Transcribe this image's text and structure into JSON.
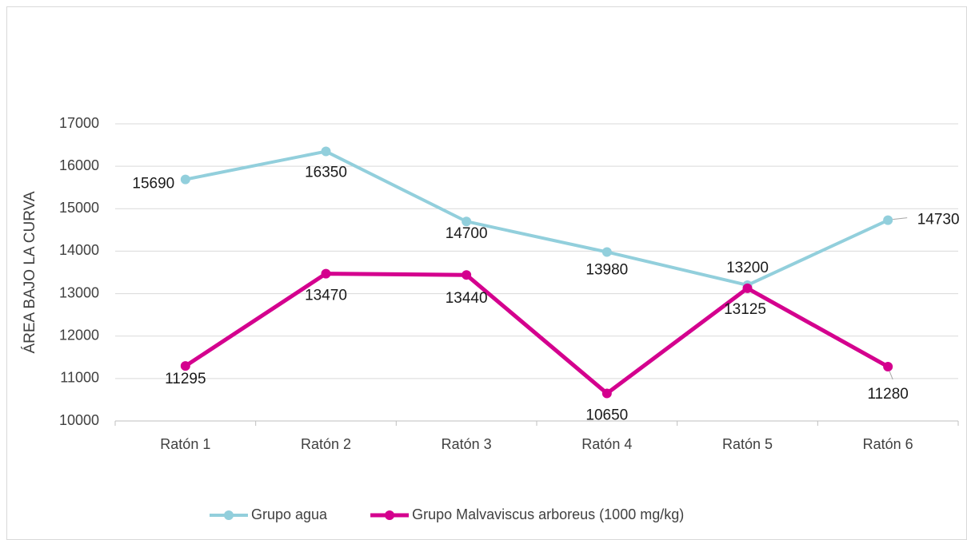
{
  "chart_data": {
    "type": "line",
    "y_label": "ÁREA BAJO LA CURVA",
    "categories": [
      "Ratón 1",
      "Ratón 2",
      "Ratón 3",
      "Ratón 4",
      "Ratón 5",
      "Ratón 6"
    ],
    "series": [
      {
        "name": "Grupo agua",
        "color": "#92cfdc",
        "values": [
          15690,
          16350,
          14700,
          13980,
          13200,
          14730
        ]
      },
      {
        "name": "Grupo Malvaviscus arboreus (1000 mg/kg)",
        "color": "#d4008e",
        "values": [
          11295,
          13470,
          13440,
          10650,
          13125,
          11280
        ]
      }
    ],
    "ylim": [
      10000,
      17000
    ],
    "yticks": [
      10000,
      11000,
      12000,
      13000,
      14000,
      15000,
      16000,
      17000
    ],
    "grid": true,
    "legend": "bottom"
  }
}
